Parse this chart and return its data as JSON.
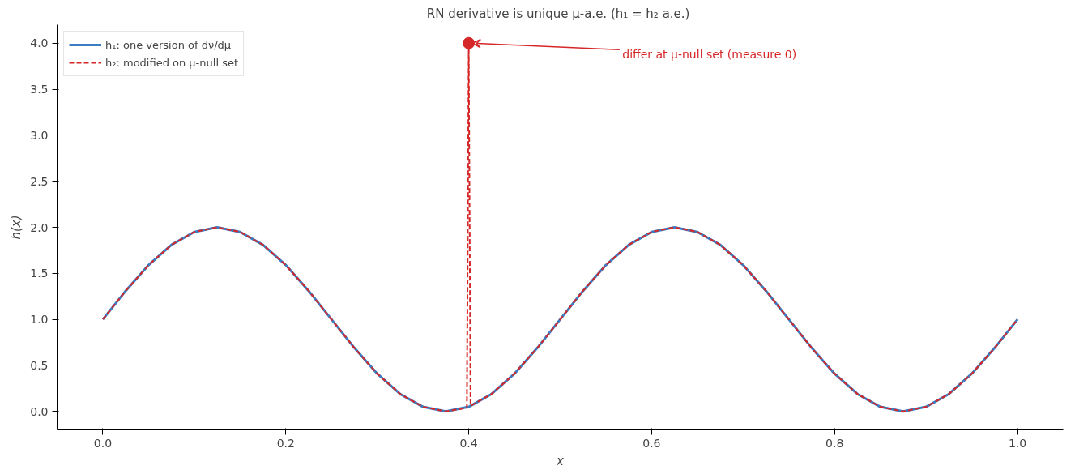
{
  "chart_data": {
    "type": "line",
    "title": "RN derivative is unique μ-a.e.  (h₁ = h₂ a.e.)",
    "xlabel": "x",
    "ylabel": "h(x)",
    "xlim": [
      -0.05,
      1.05
    ],
    "ylim": [
      -0.2,
      4.2
    ],
    "xticks": [
      {
        "value": 0,
        "label": "0.0"
      },
      0.2,
      0.4,
      0.6,
      0.8,
      {
        "value": 1,
        "label": "1.0"
      }
    ],
    "yticks": [
      {
        "value": 0,
        "label": "0.0"
      },
      0.5,
      {
        "value": 1,
        "label": "1.0"
      },
      1.5,
      {
        "value": 2,
        "label": "2.0"
      },
      2.5,
      {
        "value": 3,
        "label": "3.0"
      },
      3.5,
      {
        "value": 4,
        "label": "4.0"
      }
    ],
    "grid": false,
    "legend": "top left",
    "series": [
      {
        "name": "h₁: one version of dν/dμ",
        "color": "#3a7dc2",
        "line_style": "solid",
        "x": [
          0,
          0.025,
          0.05,
          0.075,
          0.1,
          0.125,
          0.15,
          0.175,
          0.2,
          0.225,
          0.25,
          0.275,
          0.3,
          0.325,
          0.35,
          0.375,
          0.4,
          0.425,
          0.45,
          0.475,
          0.5,
          0.525,
          0.55,
          0.575,
          0.6,
          0.625,
          0.65,
          0.675,
          0.7,
          0.725,
          0.75,
          0.775,
          0.8,
          0.825,
          0.85,
          0.875,
          0.9,
          0.925,
          0.95,
          0.975,
          1
        ],
        "values": [
          1,
          1.31,
          1.59,
          1.81,
          1.95,
          2,
          1.95,
          1.81,
          1.59,
          1.31,
          1,
          0.69,
          0.41,
          0.19,
          0.05,
          0,
          0.05,
          0.19,
          0.41,
          0.69,
          1,
          1.31,
          1.59,
          1.81,
          1.95,
          2,
          1.95,
          1.81,
          1.59,
          1.31,
          1,
          0.69,
          0.41,
          0.19,
          0.05,
          0,
          0.05,
          0.19,
          0.41,
          0.69,
          1
        ]
      },
      {
        "name": "h₂: modified on μ-null set",
        "color": "#d62728",
        "line_style": "dashed",
        "x": [
          0,
          0.025,
          0.05,
          0.075,
          0.1,
          0.125,
          0.15,
          0.175,
          0.2,
          0.225,
          0.25,
          0.275,
          0.3,
          0.325,
          0.35,
          0.375,
          0.398,
          0.4,
          0.402,
          0.425,
          0.45,
          0.475,
          0.5,
          0.525,
          0.55,
          0.575,
          0.6,
          0.625,
          0.65,
          0.675,
          0.7,
          0.725,
          0.75,
          0.775,
          0.8,
          0.825,
          0.85,
          0.875,
          0.9,
          0.925,
          0.95,
          0.975,
          1
        ],
        "values": [
          1,
          1.31,
          1.59,
          1.81,
          1.95,
          2,
          1.95,
          1.81,
          1.59,
          1.31,
          1,
          0.69,
          0.41,
          0.19,
          0.05,
          0,
          0.04,
          4,
          0.06,
          0.19,
          0.41,
          0.69,
          1,
          1.31,
          1.59,
          1.81,
          1.95,
          2,
          1.95,
          1.81,
          1.59,
          1.31,
          1,
          0.69,
          0.41,
          0.19,
          0.05,
          0,
          0.05,
          0.19,
          0.41,
          0.69,
          1
        ]
      },
      {
        "type": "scatter",
        "marker": "circle",
        "color": "#d62728",
        "x": [
          0.4
        ],
        "values": [
          4
        ]
      }
    ],
    "annotations": [
      {
        "text": "differ at μ-null set (measure 0)",
        "x": 0.4,
        "y": 4
      }
    ]
  }
}
